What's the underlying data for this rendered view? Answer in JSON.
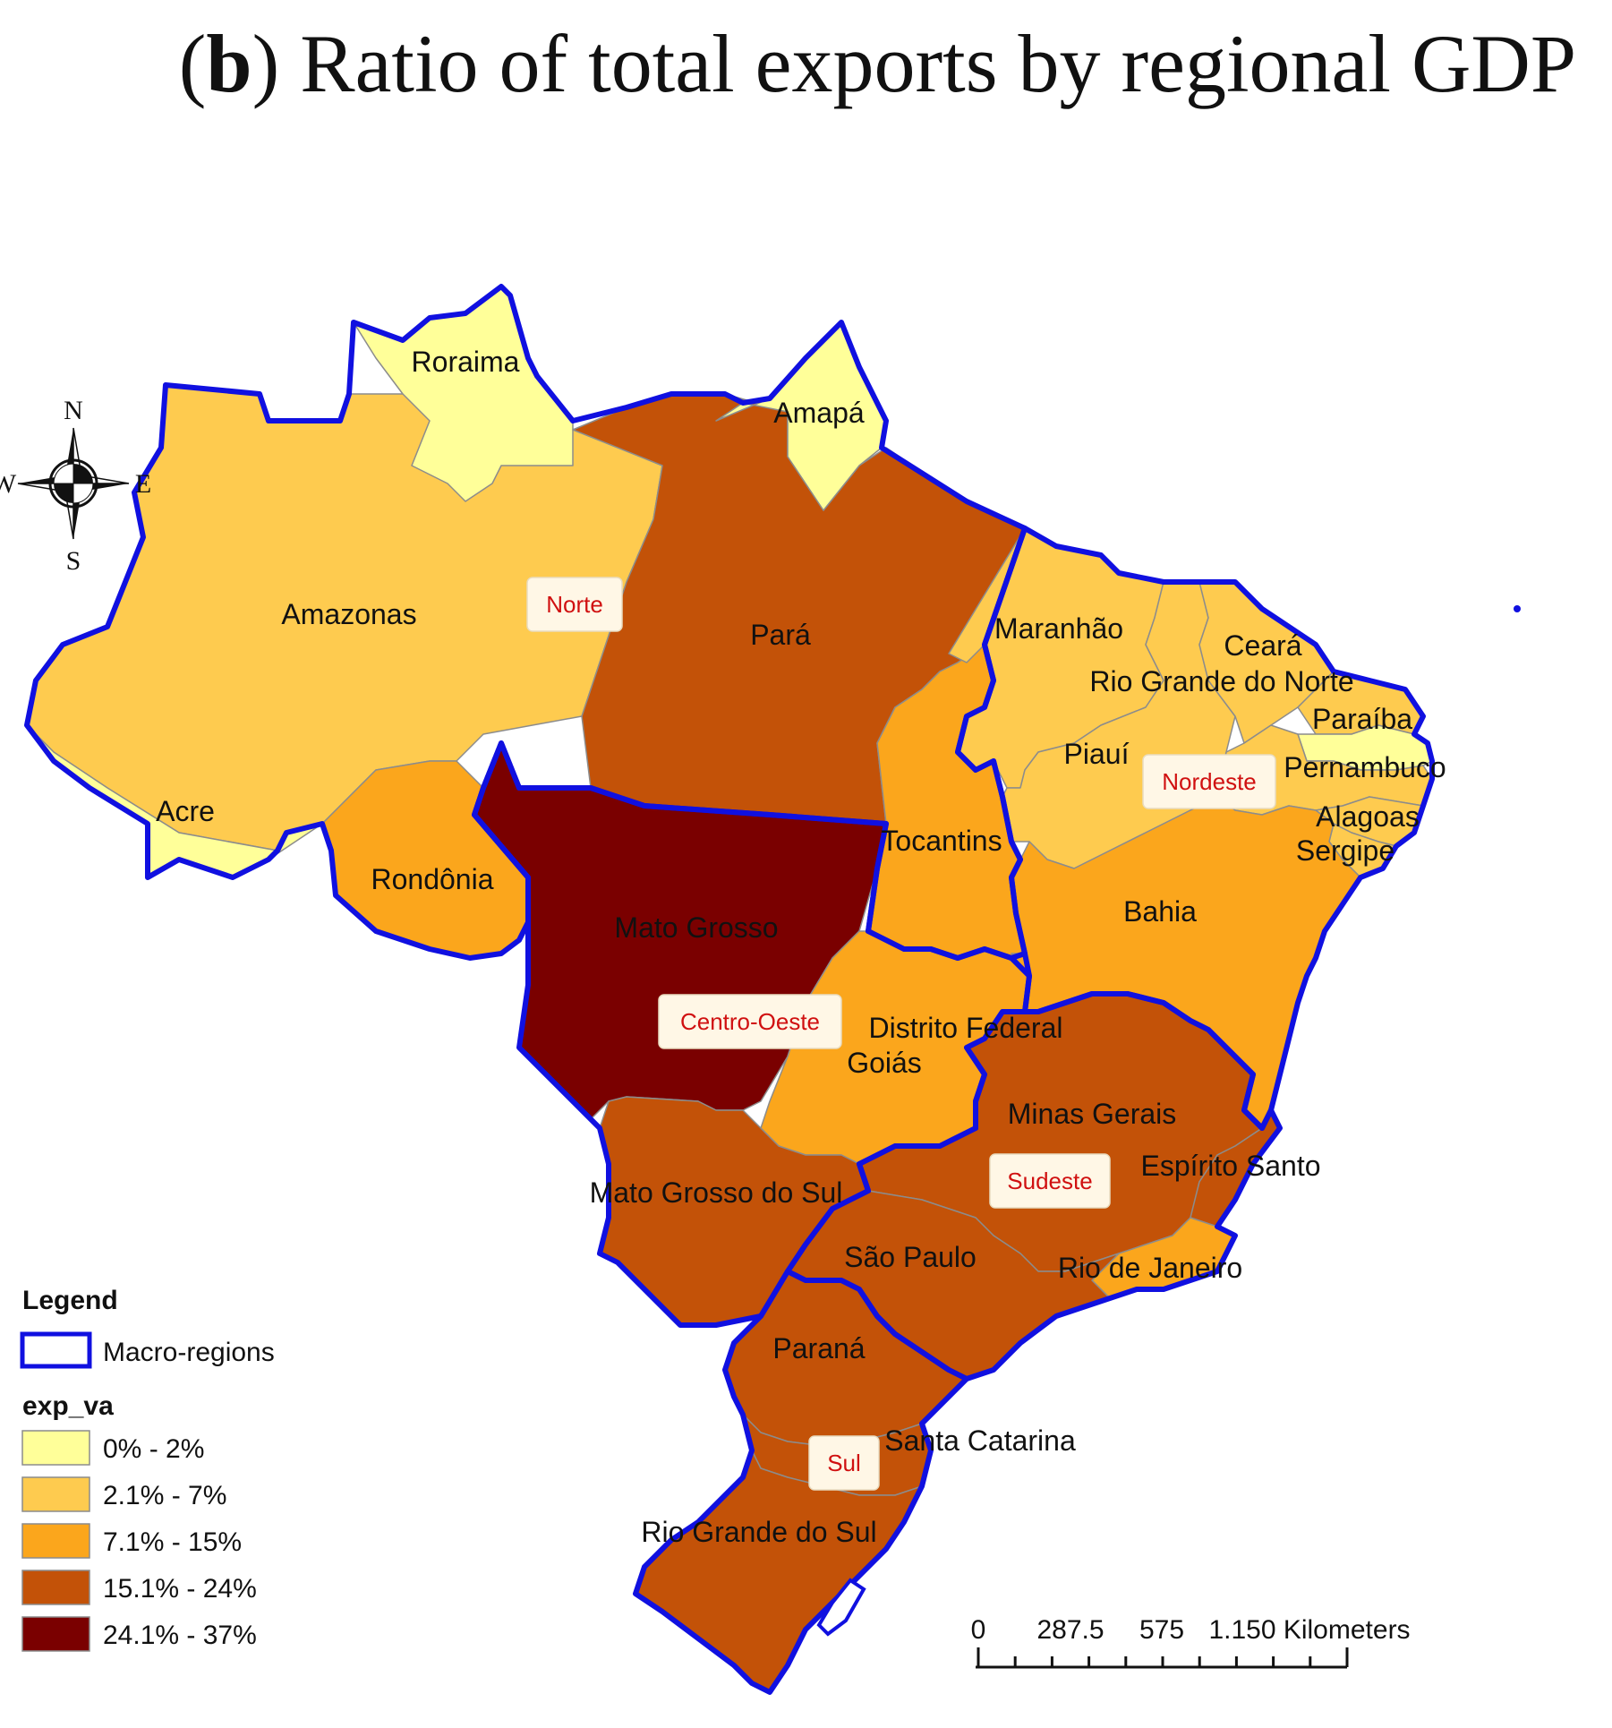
{
  "title": {
    "prefix": "(",
    "letter": "b",
    "suffix": ") Ratio of total exports by regional GDP"
  },
  "colors": {
    "class1": "#FFFF99",
    "class2": "#FECB4F",
    "class3": "#FBA61C",
    "class4": "#C35208",
    "class5": "#7A0000",
    "macro_border": "#1010E0",
    "internal_border": "#8C8C8C",
    "region_label_text": "#D01010"
  },
  "compass": {
    "n": "N",
    "s": "S",
    "e": "E",
    "w": "W"
  },
  "states": [
    {
      "id": "roraima",
      "label": "Roraima",
      "class": 1
    },
    {
      "id": "amapa",
      "label": "Amapá",
      "class": 1
    },
    {
      "id": "amazonas",
      "label": "Amazonas",
      "class": 2
    },
    {
      "id": "para",
      "label": "Pará",
      "class": 4
    },
    {
      "id": "acre",
      "label": "Acre",
      "class": 1
    },
    {
      "id": "rondonia",
      "label": "Rondônia",
      "class": 3
    },
    {
      "id": "tocantins",
      "label": "Tocantins",
      "class": 3
    },
    {
      "id": "maranhao",
      "label": "Maranhão",
      "class": 2
    },
    {
      "id": "piaui",
      "label": "Piauí",
      "class": 2
    },
    {
      "id": "ceara",
      "label": "Ceará",
      "class": 2
    },
    {
      "id": "rio-grande-do-norte",
      "label": "Rio Grande do Norte",
      "class": 2
    },
    {
      "id": "paraiba",
      "label": "Paraíba",
      "class": 1
    },
    {
      "id": "pernambuco",
      "label": "Pernambuco",
      "class": 2
    },
    {
      "id": "alagoas",
      "label": "Alagoas",
      "class": 2
    },
    {
      "id": "sergipe",
      "label": "Sergipe",
      "class": 2
    },
    {
      "id": "bahia",
      "label": "Bahia",
      "class": 3
    },
    {
      "id": "mato-grosso",
      "label": "Mato Grosso",
      "class": 5
    },
    {
      "id": "goias",
      "label": "Goiás",
      "class": 3
    },
    {
      "id": "distrito-federal",
      "label": "Distrito Federal",
      "class": 3
    },
    {
      "id": "minas-gerais",
      "label": "Minas Gerais",
      "class": 4
    },
    {
      "id": "espirito-santo",
      "label": "Espírito Santo",
      "class": 4
    },
    {
      "id": "rio-de-janeiro",
      "label": "Rio de Janeiro",
      "class": 3
    },
    {
      "id": "sao-paulo",
      "label": "São Paulo",
      "class": 4
    },
    {
      "id": "mato-grosso-do-sul",
      "label": "Mato Grosso do Sul",
      "class": 4
    },
    {
      "id": "parana",
      "label": "Paraná",
      "class": 4
    },
    {
      "id": "santa-catarina",
      "label": "Santa Catarina",
      "class": 4
    },
    {
      "id": "rio-grande-do-sul",
      "label": "Rio Grande do Sul",
      "class": 4
    }
  ],
  "regions": [
    "Norte",
    "Nordeste",
    "Centro-Oeste",
    "Sudeste",
    "Sul"
  ],
  "legend": {
    "title": "Legend",
    "macro_label": "Macro-regions",
    "field": "exp_va",
    "classes": [
      "0% - 2%",
      "2.1% - 7%",
      "7.1% - 15%",
      "15.1% - 24%",
      "24.1% - 37%"
    ]
  },
  "scale": {
    "ticks": [
      "0",
      "287.5",
      "575",
      "1.150 Kilometers"
    ]
  }
}
